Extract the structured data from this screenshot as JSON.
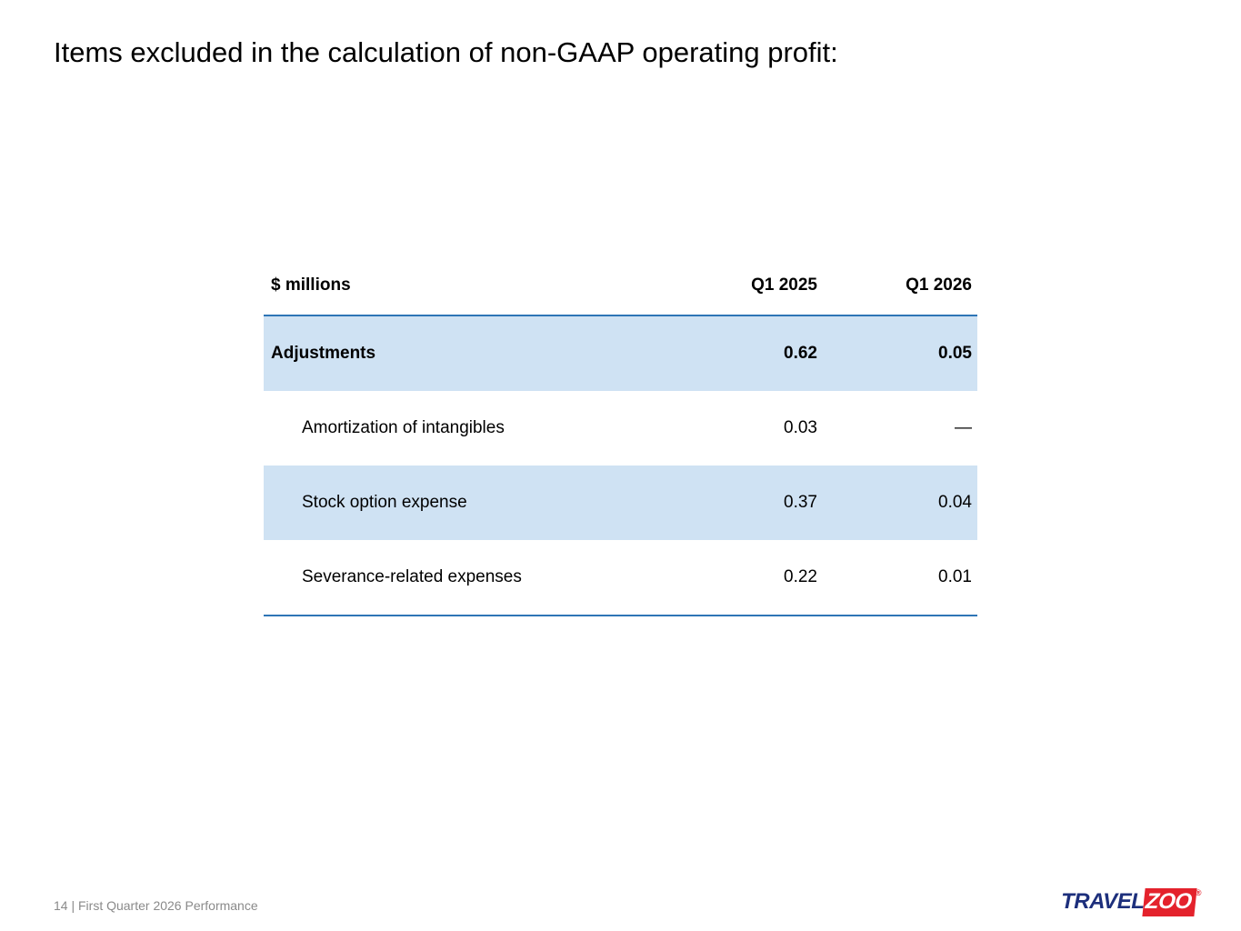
{
  "slide": {
    "title": "Items excluded in the calculation of non-GAAP operating profit:",
    "footer": "14 | First Quarter 2026 Performance"
  },
  "table": {
    "columns": [
      "$ millions",
      "Q1 2025",
      "Q1 2026"
    ],
    "rows": [
      {
        "label": "Adjustments",
        "values": [
          "0.62",
          "0.05"
        ]
      },
      {
        "label": "Amortization of intangibles",
        "values": [
          "0.03",
          "—"
        ]
      },
      {
        "label": "Stock option expense",
        "values": [
          "0.37",
          "0.04"
        ]
      },
      {
        "label": "Severance-related expenses",
        "values": [
          "0.22",
          "0.01"
        ]
      }
    ]
  },
  "logo": {
    "part1": "TRAVEL",
    "part2": "ZOO",
    "registered": "®"
  },
  "colors": {
    "row_highlight": "#cfe2f3",
    "rule_blue": "#2e75b6",
    "logo_navy": "#1d2f7c",
    "logo_red": "#e4222c",
    "footer_gray": "#8a8a8a"
  }
}
